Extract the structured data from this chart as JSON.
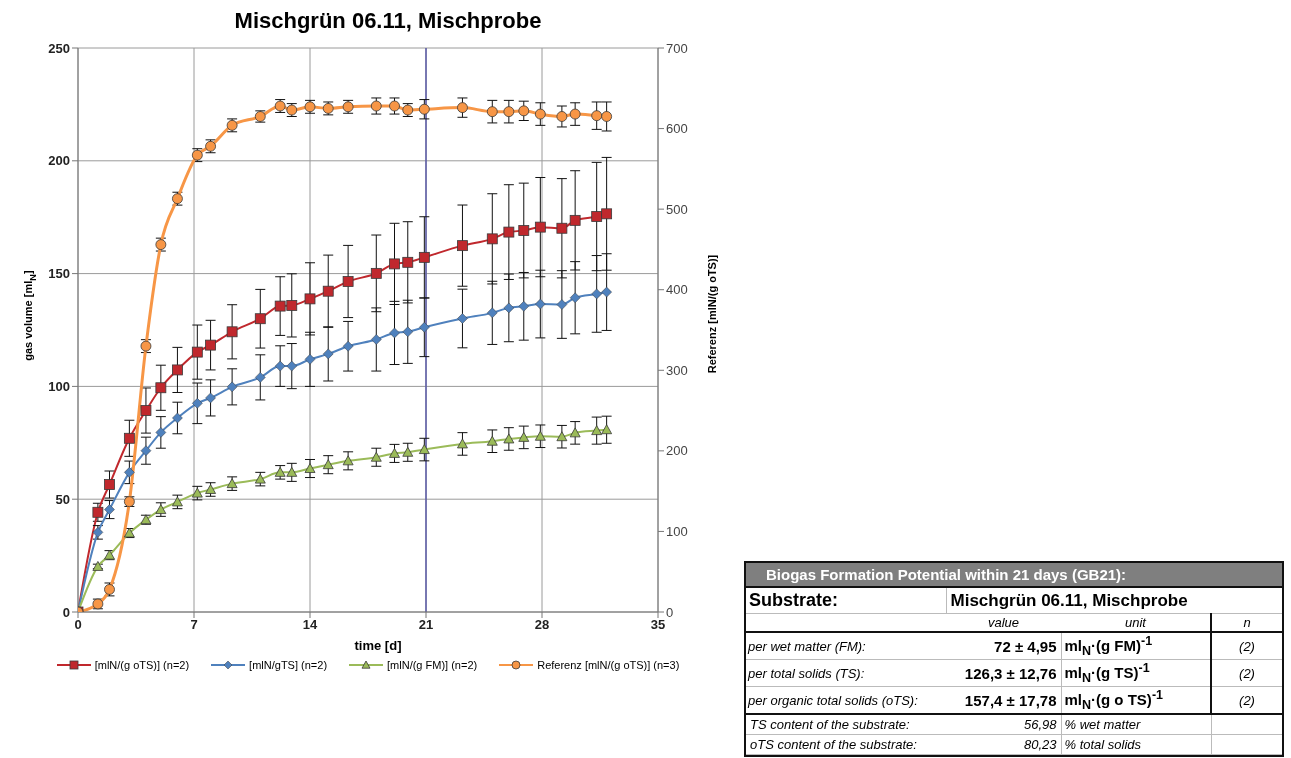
{
  "chart_data": [
    {
      "type": "line",
      "title": "Mischgrün 06.11, Mischprobe",
      "xlabel": "time [d]",
      "ylabel": "gas volume [ml$_{N}$]",
      "y2label": "Referenz [mlN/(g oTS)]",
      "x": [
        0,
        1.2,
        1.9,
        3.1,
        4.1,
        5,
        6,
        7.2,
        8,
        9.3,
        11,
        12.2,
        12.9,
        14,
        15.1,
        16.3,
        18,
        19.1,
        19.9,
        20.9,
        23.2,
        25,
        26,
        26.9,
        27.9,
        29.2,
        30,
        31.3,
        31.9
      ],
      "xlim": [
        0,
        35
      ],
      "xticks": [
        0,
        7,
        14,
        21,
        28,
        35
      ],
      "ylim": [
        0,
        250
      ],
      "yticks": [
        0,
        50,
        100,
        150,
        200,
        250
      ],
      "y2lim": [
        0,
        700
      ],
      "y2ticks": [
        0,
        100,
        200,
        300,
        400,
        500,
        600,
        700
      ],
      "grid": true,
      "legend": "bottom",
      "ref_lines": [
        {
          "axis": "x",
          "value": 21,
          "color": "#5b5ba8"
        }
      ],
      "series": [
        {
          "name": "[mlN/(g oTS)] (n=2)",
          "color": "#c0282d",
          "marker": "square",
          "values": [
            0,
            44.2,
            56.5,
            77,
            89.3,
            99.4,
            107.3,
            115.2,
            118.3,
            124.2,
            130,
            135.6,
            135.9,
            138.8,
            142.2,
            146.5,
            150.1,
            154.3,
            155,
            157.2,
            162.4,
            165.4,
            168.4,
            169.1,
            170.6,
            170.1,
            173.6,
            175.3,
            176.5
          ],
          "errors": [
            0,
            4,
            6,
            8,
            10,
            10,
            10,
            12,
            11,
            12,
            13,
            13,
            14,
            16,
            16,
            16,
            17,
            18,
            18,
            18,
            18,
            20,
            21,
            21,
            22,
            22,
            22,
            24,
            25
          ]
        },
        {
          "name": "[mlN/gTS] (n=2)",
          "color": "#4f81bd",
          "marker": "diamond",
          "values": [
            0,
            35.3,
            45.4,
            61.9,
            71.5,
            79.6,
            86,
            92.5,
            94.9,
            99.8,
            104,
            109,
            109,
            112,
            114.4,
            117.8,
            120.8,
            123.7,
            124.2,
            126.2,
            130.1,
            132.6,
            134.8,
            135.5,
            136.5,
            136.3,
            139.3,
            141,
            141.8
          ],
          "errors": [
            0,
            3,
            4,
            5,
            6,
            7,
            7,
            9,
            8,
            8,
            10,
            9,
            10,
            12,
            12,
            11,
            14,
            14,
            14,
            13,
            13,
            14,
            15,
            15,
            15,
            15,
            16,
            17,
            17
          ]
        },
        {
          "name": "[mlN/(g FM)] (n=2)",
          "color": "#9bbb59",
          "marker": "triangle",
          "values": [
            0,
            20.2,
            25.2,
            35,
            40.9,
            45.4,
            48.8,
            52.7,
            54.3,
            56.9,
            58.9,
            61.9,
            61.9,
            63.6,
            65.3,
            67,
            68.6,
            70.3,
            70.8,
            72,
            74.5,
            75.7,
            76.7,
            77.4,
            77.9,
            77.7,
            79.4,
            80.4,
            80.8
          ],
          "errors": [
            0,
            1,
            2,
            2,
            2,
            3,
            3,
            3,
            3,
            3,
            3,
            3,
            4,
            4,
            4,
            4,
            4,
            4,
            4,
            5,
            5,
            5,
            5,
            5,
            5,
            5,
            5,
            6,
            6
          ]
        },
        {
          "name": "Referenz [mlN/(g oTS)] (n=3)",
          "color": "#f79646",
          "marker": "circle",
          "axis": "y2",
          "values": [
            0,
            10,
            28,
            137,
            330,
            456,
            513,
            567,
            578,
            604,
            615,
            628,
            623,
            627,
            625,
            627,
            628,
            628,
            623,
            624,
            626,
            621,
            621,
            622,
            618,
            615,
            618,
            616,
            615
          ],
          "errors": [
            0,
            6,
            8,
            6,
            8,
            8,
            8,
            8,
            8,
            8,
            7,
            8,
            8,
            8,
            8,
            8,
            10,
            10,
            8,
            12,
            12,
            14,
            14,
            12,
            14,
            13,
            14,
            17,
            18
          ]
        }
      ]
    },
    {
      "type": "other",
      "title": "Biogas Formation Potential within 21 days (GB21):",
      "annotations": [
        "Substrate:",
        "Mischgrün 06.11, Mischprobe",
        "value",
        "unit",
        "n",
        "per wet matter (FM):",
        "72 ± 4,95",
        "ml$_{N}$·(g FM)$^{-1}$",
        "(2)",
        "per total solids (TS):",
        "126,3 ± 12,76",
        "ml$_{N}$·(g TS)$^{-1}$",
        "(2)",
        "per organic total solids (oTS):",
        "157,4 ± 17,78",
        "ml$_{N}$·(g o TS)$^{-1}$",
        "(2)",
        "TS content of the substrate:",
        "56,98",
        "% wet matter",
        "oTS content of the substrate:",
        "80,23",
        "% total solids"
      ]
    }
  ]
}
